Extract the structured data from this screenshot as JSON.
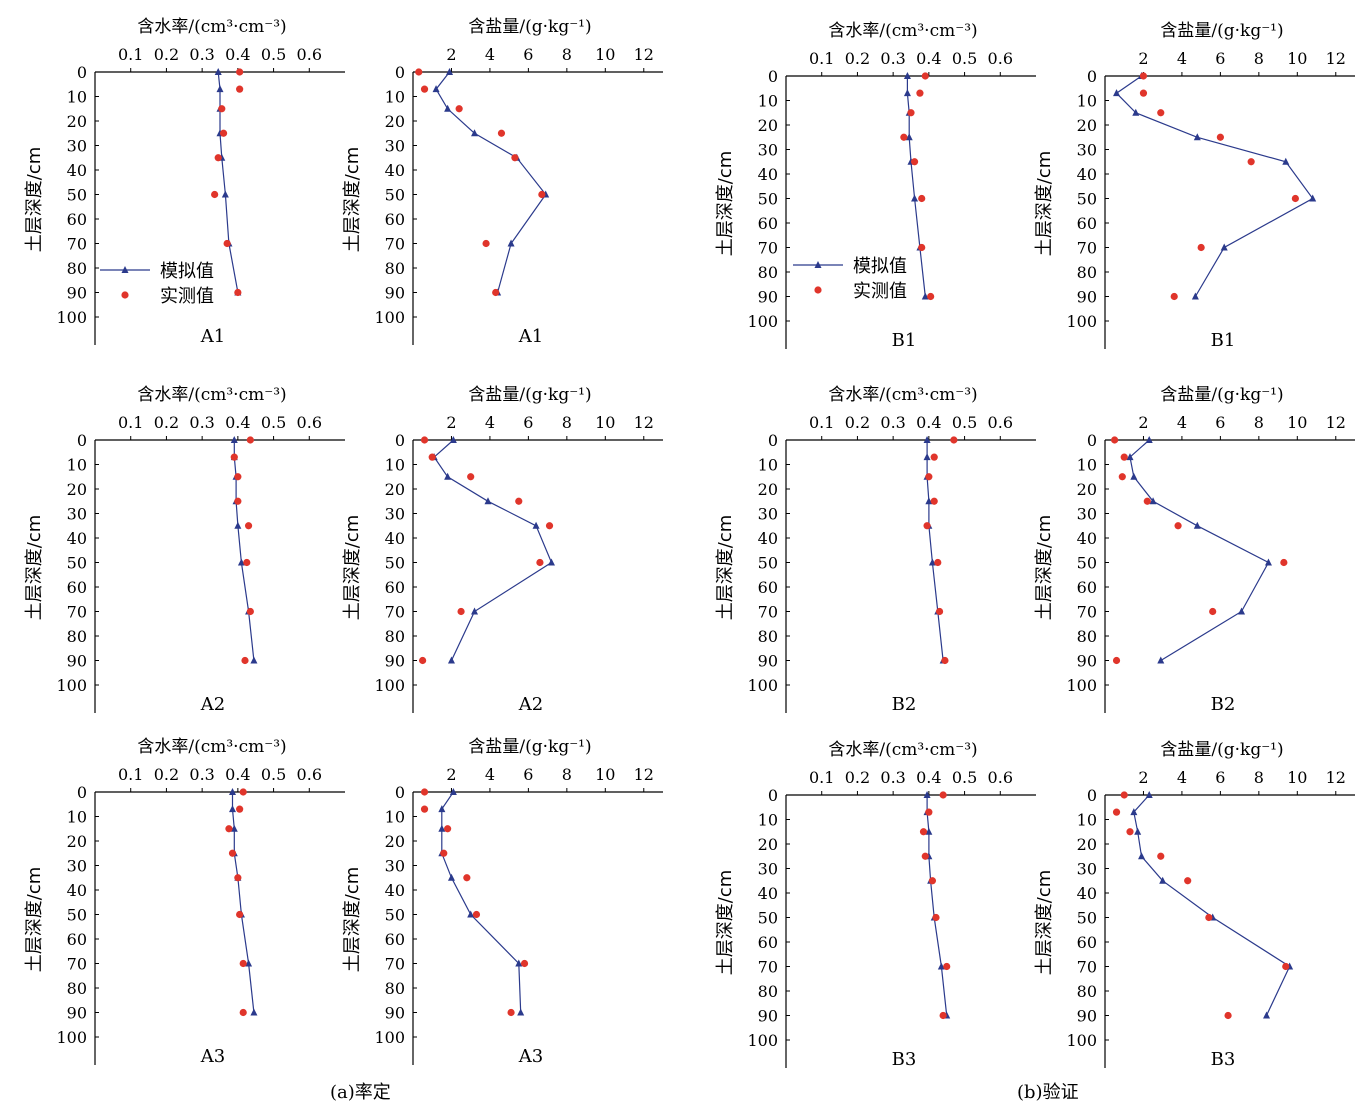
{
  "y_axis_label": "土层深度/cm",
  "legend": {
    "simulated": "模拟值",
    "measured": "实测值"
  },
  "group_captions": {
    "a": "(a)率定",
    "b": "(b)验证"
  },
  "colors": {
    "simulated": "#2b3a8c",
    "measured": "#e0352b",
    "axis": "#000000"
  },
  "chart_data": [
    {
      "type": "line",
      "site": "A1",
      "variable": "water",
      "title": "含水率/(cm³·cm⁻³)",
      "xticks": [
        "0.1",
        "0.2",
        "0.3",
        "0.4",
        "0.5",
        "0.6"
      ],
      "xlim": [
        0,
        0.7
      ],
      "ylim": [
        0,
        100
      ],
      "yticks": [
        0,
        10,
        20,
        30,
        40,
        50,
        60,
        70,
        80,
        90,
        100
      ],
      "series": [
        {
          "name": "模拟值",
          "depth": [
            0,
            7,
            15,
            25,
            35,
            50,
            70,
            90
          ],
          "values": [
            0.345,
            0.35,
            0.35,
            0.35,
            0.355,
            0.365,
            0.375,
            0.4
          ]
        },
        {
          "name": "实测值",
          "depth": [
            0,
            7,
            15,
            25,
            35,
            50,
            70,
            90
          ],
          "values": [
            0.405,
            0.405,
            0.355,
            0.36,
            0.345,
            0.335,
            0.37,
            0.4
          ]
        }
      ]
    },
    {
      "type": "line",
      "site": "A1",
      "variable": "salt",
      "title": "含盐量/(g·kg⁻¹)",
      "xticks": [
        "2",
        "4",
        "6",
        "8",
        "10",
        "12"
      ],
      "xlim": [
        0,
        13
      ],
      "ylim": [
        0,
        100
      ],
      "yticks": [
        0,
        10,
        20,
        30,
        40,
        50,
        60,
        70,
        80,
        90,
        100
      ],
      "series": [
        {
          "name": "模拟值",
          "depth": [
            0,
            7,
            15,
            25,
            35,
            50,
            70,
            90
          ],
          "values": [
            1.9,
            1.2,
            1.8,
            3.2,
            5.4,
            6.9,
            5.1,
            4.4
          ]
        },
        {
          "name": "实测值",
          "depth": [
            0,
            7,
            15,
            25,
            35,
            50,
            70,
            90
          ],
          "values": [
            0.3,
            0.6,
            2.4,
            4.6,
            5.3,
            6.7,
            3.8,
            4.3
          ]
        }
      ]
    },
    {
      "type": "line",
      "site": "B1",
      "variable": "water",
      "title": "含水率/(cm³·cm⁻³)",
      "xticks": [
        "0.1",
        "0.2",
        "0.3",
        "0.4",
        "0.5",
        "0.6"
      ],
      "xlim": [
        0,
        0.7
      ],
      "ylim": [
        0,
        100
      ],
      "yticks": [
        0,
        10,
        20,
        30,
        40,
        50,
        60,
        70,
        80,
        90,
        100
      ],
      "series": [
        {
          "name": "模拟值",
          "depth": [
            0,
            7,
            15,
            25,
            35,
            50,
            70,
            90
          ],
          "values": [
            0.34,
            0.34,
            0.345,
            0.345,
            0.35,
            0.36,
            0.375,
            0.39
          ]
        },
        {
          "name": "实测值",
          "depth": [
            0,
            7,
            15,
            25,
            35,
            50,
            70,
            90
          ],
          "values": [
            0.39,
            0.375,
            0.35,
            0.33,
            0.36,
            0.38,
            0.38,
            0.405
          ]
        }
      ]
    },
    {
      "type": "line",
      "site": "B1",
      "variable": "salt",
      "title": "含盐量/(g·kg⁻¹)",
      "xticks": [
        "2",
        "4",
        "6",
        "8",
        "10",
        "12"
      ],
      "xlim": [
        0,
        13
      ],
      "ylim": [
        0,
        100
      ],
      "yticks": [
        0,
        10,
        20,
        30,
        40,
        50,
        60,
        70,
        80,
        90,
        100
      ],
      "series": [
        {
          "name": "模拟值",
          "depth": [
            0,
            7,
            15,
            25,
            35,
            50,
            70,
            90
          ],
          "values": [
            1.9,
            0.6,
            1.6,
            4.8,
            9.4,
            10.8,
            6.2,
            4.7
          ]
        },
        {
          "name": "实测值",
          "depth": [
            0,
            7,
            15,
            25,
            35,
            50,
            70,
            90
          ],
          "values": [
            2.0,
            2.0,
            2.9,
            6.0,
            7.6,
            9.9,
            5.0,
            3.6
          ]
        }
      ]
    },
    {
      "type": "line",
      "site": "A2",
      "variable": "water",
      "title": "含水率/(cm³·cm⁻³)",
      "xticks": [
        "0.1",
        "0.2",
        "0.3",
        "0.4",
        "0.5",
        "0.6"
      ],
      "xlim": [
        0,
        0.7
      ],
      "ylim": [
        0,
        100
      ],
      "yticks": [
        0,
        10,
        20,
        30,
        40,
        50,
        60,
        70,
        80,
        90,
        100
      ],
      "series": [
        {
          "name": "模拟值",
          "depth": [
            0,
            7,
            15,
            25,
            35,
            50,
            70,
            90
          ],
          "values": [
            0.39,
            0.39,
            0.395,
            0.395,
            0.4,
            0.41,
            0.43,
            0.445
          ]
        },
        {
          "name": "实测值",
          "depth": [
            0,
            7,
            15,
            25,
            35,
            50,
            70,
            90
          ],
          "values": [
            0.435,
            0.39,
            0.4,
            0.4,
            0.43,
            0.425,
            0.435,
            0.42
          ]
        }
      ]
    },
    {
      "type": "line",
      "site": "A2",
      "variable": "salt",
      "title": "含盐量/(g·kg⁻¹)",
      "xticks": [
        "2",
        "4",
        "6",
        "8",
        "10",
        "12"
      ],
      "xlim": [
        0,
        13
      ],
      "ylim": [
        0,
        100
      ],
      "yticks": [
        0,
        10,
        20,
        30,
        40,
        50,
        60,
        70,
        80,
        90,
        100
      ],
      "series": [
        {
          "name": "模拟值",
          "depth": [
            0,
            7,
            15,
            25,
            35,
            50,
            70,
            90
          ],
          "values": [
            2.1,
            1.1,
            1.8,
            3.9,
            6.4,
            7.2,
            3.2,
            2.0
          ]
        },
        {
          "name": "实测值",
          "depth": [
            0,
            7,
            15,
            25,
            35,
            50,
            70,
            90
          ],
          "values": [
            0.6,
            1.0,
            3.0,
            5.5,
            7.1,
            6.6,
            2.5,
            0.5
          ]
        }
      ]
    },
    {
      "type": "line",
      "site": "B2",
      "variable": "water",
      "title": "含水率/(cm³·cm⁻³)",
      "xticks": [
        "0.1",
        "0.2",
        "0.3",
        "0.4",
        "0.5",
        "0.6"
      ],
      "xlim": [
        0,
        0.7
      ],
      "ylim": [
        0,
        100
      ],
      "yticks": [
        0,
        10,
        20,
        30,
        40,
        50,
        60,
        70,
        80,
        90,
        100
      ],
      "series": [
        {
          "name": "模拟值",
          "depth": [
            0,
            7,
            15,
            25,
            35,
            50,
            70,
            90
          ],
          "values": [
            0.395,
            0.395,
            0.395,
            0.4,
            0.4,
            0.41,
            0.425,
            0.44
          ]
        },
        {
          "name": "实测值",
          "depth": [
            0,
            7,
            15,
            25,
            35,
            50,
            70,
            90
          ],
          "values": [
            0.47,
            0.415,
            0.4,
            0.415,
            0.395,
            0.425,
            0.43,
            0.445
          ]
        }
      ]
    },
    {
      "type": "line",
      "site": "B2",
      "variable": "salt",
      "title": "含盐量/(g·kg⁻¹)",
      "xticks": [
        "2",
        "4",
        "6",
        "8",
        "10",
        "12"
      ],
      "xlim": [
        0,
        13
      ],
      "ylim": [
        0,
        100
      ],
      "yticks": [
        0,
        10,
        20,
        30,
        40,
        50,
        60,
        70,
        80,
        90,
        100
      ],
      "series": [
        {
          "name": "模拟值",
          "depth": [
            0,
            7,
            15,
            25,
            35,
            50,
            70,
            90
          ],
          "values": [
            2.3,
            1.3,
            1.5,
            2.5,
            4.8,
            8.5,
            7.1,
            2.9
          ]
        },
        {
          "name": "实测值",
          "depth": [
            0,
            7,
            15,
            25,
            35,
            50,
            70,
            90
          ],
          "values": [
            0.5,
            1.0,
            0.9,
            2.2,
            3.8,
            9.3,
            5.6,
            0.6
          ]
        }
      ]
    },
    {
      "type": "line",
      "site": "A3",
      "variable": "water",
      "title": "含水率/(cm³·cm⁻³)",
      "xticks": [
        "0.1",
        "0.2",
        "0.3",
        "0.4",
        "0.5",
        "0.6"
      ],
      "xlim": [
        0,
        0.7
      ],
      "ylim": [
        0,
        100
      ],
      "yticks": [
        0,
        10,
        20,
        30,
        40,
        50,
        60,
        70,
        80,
        90,
        100
      ],
      "series": [
        {
          "name": "模拟值",
          "depth": [
            0,
            7,
            15,
            25,
            35,
            50,
            70,
            90
          ],
          "values": [
            0.385,
            0.385,
            0.39,
            0.39,
            0.4,
            0.41,
            0.43,
            0.445
          ]
        },
        {
          "name": "实测值",
          "depth": [
            0,
            7,
            15,
            25,
            35,
            50,
            70,
            90
          ],
          "values": [
            0.415,
            0.405,
            0.375,
            0.385,
            0.4,
            0.405,
            0.415,
            0.415
          ]
        }
      ]
    },
    {
      "type": "line",
      "site": "A3",
      "variable": "salt",
      "title": "含盐量/(g·kg⁻¹)",
      "xticks": [
        "2",
        "4",
        "6",
        "8",
        "10",
        "12"
      ],
      "xlim": [
        0,
        13
      ],
      "ylim": [
        0,
        100
      ],
      "yticks": [
        0,
        10,
        20,
        30,
        40,
        50,
        60,
        70,
        80,
        90,
        100
      ],
      "series": [
        {
          "name": "模拟值",
          "depth": [
            0,
            7,
            15,
            25,
            35,
            50,
            70,
            90
          ],
          "values": [
            2.1,
            1.5,
            1.5,
            1.5,
            2.0,
            3.0,
            5.5,
            5.6
          ]
        },
        {
          "name": "实测值",
          "depth": [
            0,
            7,
            15,
            25,
            35,
            50,
            70,
            90
          ],
          "values": [
            0.6,
            0.6,
            1.8,
            1.6,
            2.8,
            3.3,
            5.8,
            5.1
          ]
        }
      ]
    },
    {
      "type": "line",
      "site": "B3",
      "variable": "water",
      "title": "含水率/(cm³·cm⁻³)",
      "xticks": [
        "0.1",
        "0.2",
        "0.3",
        "0.4",
        "0.5",
        "0.6"
      ],
      "xlim": [
        0,
        0.7
      ],
      "ylim": [
        0,
        100
      ],
      "yticks": [
        0,
        10,
        20,
        30,
        40,
        50,
        60,
        70,
        80,
        90,
        100
      ],
      "series": [
        {
          "name": "模拟值",
          "depth": [
            0,
            7,
            15,
            25,
            35,
            50,
            70,
            90
          ],
          "values": [
            0.395,
            0.395,
            0.4,
            0.4,
            0.405,
            0.415,
            0.435,
            0.45
          ]
        },
        {
          "name": "实测值",
          "depth": [
            0,
            7,
            15,
            25,
            35,
            50,
            70,
            90
          ],
          "values": [
            0.44,
            0.4,
            0.385,
            0.39,
            0.41,
            0.42,
            0.45,
            0.44
          ]
        }
      ]
    },
    {
      "type": "line",
      "site": "B3",
      "variable": "salt",
      "title": "含盐量/(g·kg⁻¹)",
      "xticks": [
        "2",
        "4",
        "6",
        "8",
        "10",
        "12"
      ],
      "xlim": [
        0,
        13
      ],
      "ylim": [
        0,
        100
      ],
      "yticks": [
        0,
        10,
        20,
        30,
        40,
        50,
        60,
        70,
        80,
        90,
        100
      ],
      "series": [
        {
          "name": "模拟值",
          "depth": [
            0,
            7,
            15,
            25,
            35,
            50,
            70,
            90
          ],
          "values": [
            2.3,
            1.5,
            1.7,
            1.9,
            3.0,
            5.6,
            9.6,
            8.4
          ]
        },
        {
          "name": "实测值",
          "depth": [
            0,
            7,
            15,
            25,
            35,
            50,
            70,
            90
          ],
          "values": [
            1.0,
            0.6,
            1.3,
            2.9,
            4.3,
            5.4,
            9.4,
            6.4
          ]
        }
      ]
    }
  ]
}
